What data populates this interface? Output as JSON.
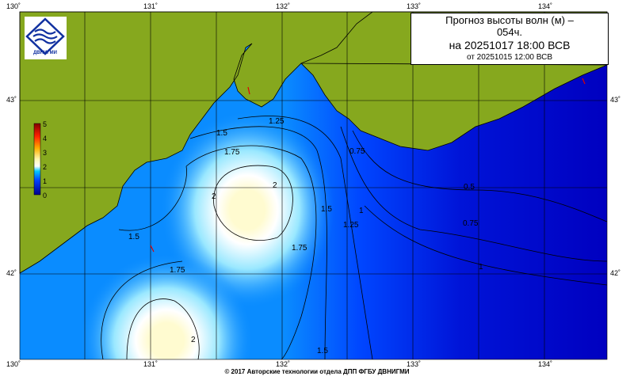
{
  "title": {
    "line1": "Прогноз высоты волн (м) –",
    "line2": "054ч.",
    "line3": "на 20251017 18:00 ВСВ",
    "line4": "от 20251015 12:00 ВСВ"
  },
  "logo_text": "ДВНИГМИ",
  "footer": "© 2017 Авторские технологии отдела ДПП ФГБУ ДВНИГМИ",
  "lon_labels": [
    "130˚",
    "131˚",
    "132˚",
    "133˚",
    "134˚"
  ],
  "lat_labels": [
    "43˚",
    "42˚"
  ],
  "legend": {
    "ticks": [
      "5",
      "4",
      "3",
      "2",
      "1",
      "0"
    ],
    "unit": "m"
  },
  "contour_labels": [
    "1.25",
    "1.5",
    "1.75",
    "2",
    "2",
    "1.5",
    "1.75",
    "1.75",
    "1.5",
    "1.25",
    "1",
    "0.75",
    "0.5",
    "0.75",
    "1",
    "2",
    "1.5"
  ],
  "colors": {
    "land": "#86a81e",
    "sea_low": "#0000c0",
    "sea_mid": "#0070ff",
    "sea_high": "#ffffff",
    "peak": "#fffbd0",
    "arrow": "#e00000"
  }
}
